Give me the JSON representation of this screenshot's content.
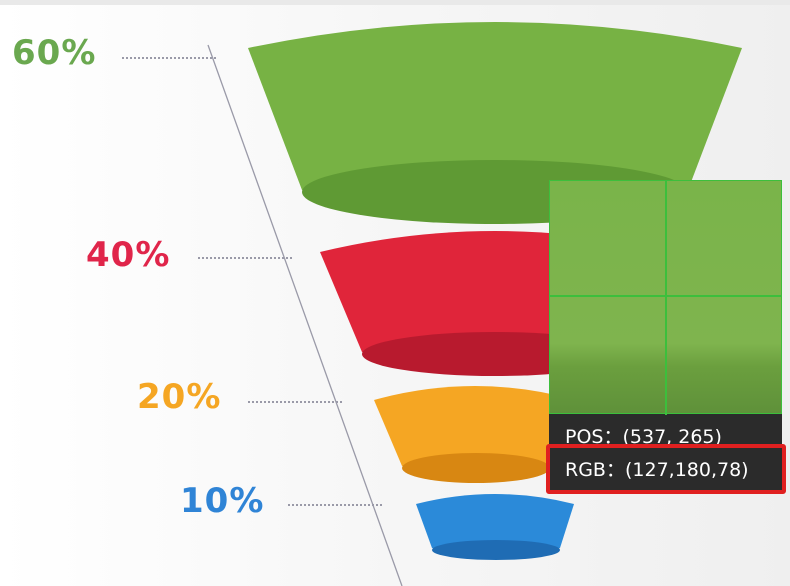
{
  "labels": [
    {
      "text": "60%",
      "color": "#6aa84f"
    },
    {
      "text": "40%",
      "color": "#e0254a"
    },
    {
      "text": "20%",
      "color": "#f5a623"
    },
    {
      "text": "10%",
      "color": "#2f84d6"
    }
  ],
  "funnel": {
    "segment_colors": [
      "#77b244",
      "#e0253a",
      "#f5a623",
      "#2b8ad9"
    ],
    "segment_shade_colors": [
      "#5f9a34",
      "#b81a2e",
      "#d88712",
      "#1f6cb4"
    ]
  },
  "color_picker": {
    "pos_label": "POS",
    "pos_value": "(537, 265)",
    "rgb_label": "RGB",
    "rgb_value": "(127,180,78)",
    "sampled_color": "#7fb44e",
    "highlight_color": "#e02020"
  }
}
